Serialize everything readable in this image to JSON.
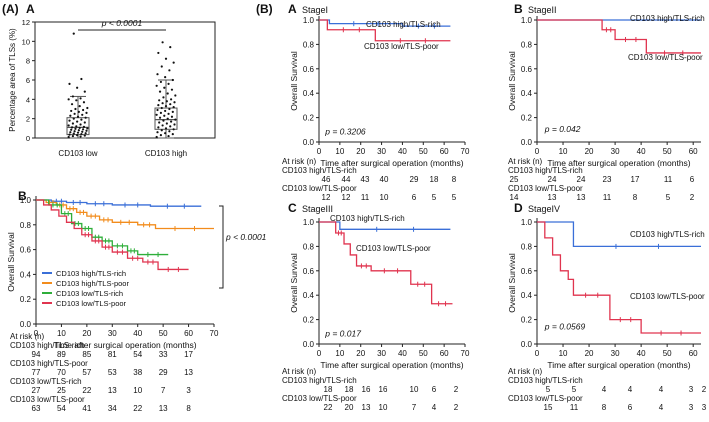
{
  "panel_labels": {
    "main_a": "(A)",
    "sub_a": "A",
    "sub_b_left": "B",
    "main_b": "(B)"
  },
  "colors": {
    "blue": "#3a6fd8",
    "orange": "#f28c1c",
    "green": "#2fae3a",
    "red": "#e0344f",
    "box": "#555555"
  },
  "chart_data": [
    {
      "id": "boxplot",
      "type": "box",
      "ylabel": "Percentage area of TLSs (%)",
      "yticks": [
        0,
        2,
        4,
        6,
        8,
        10,
        12
      ],
      "ylim": [
        0,
        12
      ],
      "categories": [
        "CD103 low",
        "CD103 high"
      ],
      "annotation": "p < 0.0001",
      "groups": [
        {
          "name": "CD103 low",
          "whisker_low": 0.0,
          "q1": 0.35,
          "median": 1.1,
          "q3": 2.1,
          "whisker_high": 4.3,
          "points": [
            0.1,
            0.15,
            0.2,
            0.25,
            0.3,
            0.35,
            0.4,
            0.45,
            0.5,
            0.55,
            0.6,
            0.65,
            0.7,
            0.75,
            0.8,
            0.85,
            0.9,
            0.95,
            1.0,
            1.05,
            1.1,
            1.15,
            1.2,
            1.3,
            1.4,
            1.5,
            1.6,
            1.7,
            1.8,
            1.9,
            2.0,
            2.1,
            2.2,
            2.3,
            2.4,
            2.5,
            2.6,
            2.7,
            2.8,
            2.9,
            3.0,
            3.1,
            3.3,
            3.5,
            3.7,
            3.9,
            4.0,
            4.1,
            4.3,
            4.8,
            5.2,
            5.6,
            6.1,
            10.8
          ]
        },
        {
          "name": "CD103 high",
          "whisker_low": 0.0,
          "q1": 0.9,
          "median": 1.9,
          "q3": 3.1,
          "whisker_high": 6.0,
          "points": [
            0.1,
            0.2,
            0.3,
            0.4,
            0.5,
            0.6,
            0.7,
            0.8,
            0.9,
            1.0,
            1.1,
            1.2,
            1.3,
            1.4,
            1.5,
            1.6,
            1.7,
            1.8,
            1.9,
            2.0,
            2.1,
            2.2,
            2.3,
            2.4,
            2.5,
            2.6,
            2.7,
            2.8,
            2.9,
            3.0,
            3.1,
            3.2,
            3.3,
            3.4,
            3.5,
            3.6,
            3.7,
            3.8,
            3.9,
            4.0,
            4.2,
            4.4,
            4.6,
            4.8,
            5.0,
            5.2,
            5.4,
            5.6,
            5.8,
            6.0,
            6.3,
            6.6,
            7.0,
            7.4,
            7.8,
            8.2,
            8.8,
            9.4,
            9.9
          ]
        }
      ]
    },
    {
      "id": "km_all",
      "type": "line",
      "xlabel": "Time after surgical operation (months)",
      "ylabel": "Overall Survival",
      "xticks": [
        0,
        10,
        20,
        30,
        40,
        50,
        60,
        70
      ],
      "yticks": [
        0.0,
        0.2,
        0.4,
        0.6,
        0.8,
        1.0
      ],
      "xlim": [
        0,
        70
      ],
      "ylim": [
        0,
        1
      ],
      "annotation": "p < 0.0001",
      "legend": [
        "CD103 high/TLS-rich",
        "CD103 high/TLS-poor",
        "CD103 low/TLS-rich",
        "CD103 low/TLS-poor"
      ],
      "series": [
        {
          "name": "CD103 high/TLS-rich",
          "color": "blue",
          "steps": [
            [
              0,
              1.0
            ],
            [
              6,
              0.99
            ],
            [
              12,
              0.98
            ],
            [
              20,
              0.97
            ],
            [
              30,
              0.96
            ],
            [
              45,
              0.95
            ],
            [
              65,
              0.95
            ]
          ]
        },
        {
          "name": "CD103 high/TLS-poor",
          "color": "orange",
          "steps": [
            [
              0,
              1.0
            ],
            [
              4,
              0.98
            ],
            [
              8,
              0.96
            ],
            [
              12,
              0.93
            ],
            [
              16,
              0.9
            ],
            [
              20,
              0.87
            ],
            [
              25,
              0.84
            ],
            [
              30,
              0.82
            ],
            [
              40,
              0.8
            ],
            [
              47,
              0.77
            ],
            [
              70,
              0.77
            ]
          ]
        },
        {
          "name": "CD103 low/TLS-rich",
          "color": "green",
          "steps": [
            [
              0,
              1.0
            ],
            [
              5,
              0.96
            ],
            [
              10,
              0.89
            ],
            [
              14,
              0.81
            ],
            [
              18,
              0.77
            ],
            [
              22,
              0.7
            ],
            [
              26,
              0.67
            ],
            [
              30,
              0.63
            ],
            [
              36,
              0.59
            ],
            [
              40,
              0.56
            ],
            [
              52,
              0.56
            ]
          ]
        },
        {
          "name": "CD103 low/TLS-poor",
          "color": "red",
          "steps": [
            [
              0,
              1.0
            ],
            [
              3,
              0.96
            ],
            [
              6,
              0.92
            ],
            [
              9,
              0.87
            ],
            [
              12,
              0.82
            ],
            [
              15,
              0.77
            ],
            [
              18,
              0.72
            ],
            [
              22,
              0.67
            ],
            [
              26,
              0.62
            ],
            [
              30,
              0.58
            ],
            [
              36,
              0.53
            ],
            [
              42,
              0.5
            ],
            [
              48,
              0.44
            ],
            [
              60,
              0.44
            ]
          ]
        }
      ],
      "risk_table": {
        "title": "At risk (n)",
        "rows": [
          {
            "label": "CD103 high/TLS-rich",
            "values": [
              "94",
              "89",
              "85",
              "81",
              "54",
              "33",
              "17"
            ]
          },
          {
            "label": "CD103 high/TLS-poor",
            "values": [
              "77",
              "70",
              "57",
              "53",
              "38",
              "29",
              "13"
            ]
          },
          {
            "label": "CD103 low/TLS-rich",
            "values": [
              "27",
              "25",
              "22",
              "13",
              "10",
              "7",
              "3"
            ]
          },
          {
            "label": "CD103 low/TLS-poor",
            "values": [
              "63",
              "54",
              "41",
              "34",
              "22",
              "13",
              "8"
            ]
          }
        ]
      }
    },
    {
      "id": "km_stage1",
      "type": "line",
      "label": "A",
      "title": "StageI",
      "xlabel": "Time after surgical operation (months)",
      "ylabel": "Overall Survival",
      "xticks": [
        0,
        10,
        20,
        30,
        40,
        50,
        60,
        70
      ],
      "yticks": [
        0.0,
        0.2,
        0.4,
        0.6,
        0.8,
        1.0
      ],
      "xlim": [
        0,
        70
      ],
      "ylim": [
        0,
        1
      ],
      "annotation": "p = 0.3206",
      "series": [
        {
          "name": "CD103 high/TLS-rich",
          "color": "blue",
          "label": "CD103 high/TLS-rich",
          "steps": [
            [
              0,
              1.0
            ],
            [
              5,
              0.97
            ],
            [
              40,
              0.95
            ],
            [
              63,
              0.95
            ]
          ]
        },
        {
          "name": "CD103 low/TLS-poor",
          "color": "red",
          "label": "CD103 low/TLS-poor",
          "steps": [
            [
              0,
              1.0
            ],
            [
              4,
              0.92
            ],
            [
              27,
              0.83
            ],
            [
              63,
              0.83
            ]
          ]
        }
      ],
      "risk_table": {
        "title": "At risk (n)",
        "rows": [
          {
            "label": "CD103 high/TLS-rich",
            "values": [
              "46",
              "44",
              "43",
              "40",
              "29",
              "18",
              "8"
            ]
          },
          {
            "label": "CD103 low/TLS-poor",
            "values": [
              "12",
              "12",
              "11",
              "10",
              "6",
              "5",
              "5"
            ]
          }
        ]
      }
    },
    {
      "id": "km_stage2",
      "type": "line",
      "label": "B",
      "title": "StageII",
      "xlabel": "Time after surgical operation (months)",
      "ylabel": "Overall Survival",
      "xticks": [
        0,
        10,
        20,
        30,
        40,
        50,
        60
      ],
      "yticks": [
        0.0,
        0.2,
        0.4,
        0.6,
        0.8,
        1.0
      ],
      "xlim": [
        0,
        63
      ],
      "ylim": [
        0,
        1
      ],
      "annotation": "p = 0.042",
      "series": [
        {
          "name": "CD103 high/TLS-rich",
          "color": "blue",
          "label": "CD103 high/TLS-rich",
          "steps": [
            [
              0,
              1.0
            ],
            [
              63,
              1.0
            ]
          ]
        },
        {
          "name": "CD103 low/TLS-poor",
          "color": "red",
          "label": "CD103 low/TLS-poor",
          "steps": [
            [
              0,
              1.0
            ],
            [
              25,
              0.92
            ],
            [
              30,
              0.84
            ],
            [
              42,
              0.73
            ],
            [
              63,
              0.73
            ]
          ]
        }
      ],
      "risk_table": {
        "title": "At risk (n)",
        "rows": [
          {
            "label": "CD103 high/TLS-rich",
            "values": [
              "25",
              "24",
              "24",
              "23",
              "17",
              "11",
              "6"
            ]
          },
          {
            "label": "CD103 low/TLS-poor",
            "values": [
              "14",
              "13",
              "13",
              "11",
              "8",
              "5",
              "2"
            ]
          }
        ]
      }
    },
    {
      "id": "km_stage3",
      "type": "line",
      "label": "C",
      "title": "StageIII",
      "xlabel": "Time after surgical operation (months)",
      "ylabel": "Overall Survival",
      "xticks": [
        0,
        10,
        20,
        30,
        40,
        50,
        60,
        70
      ],
      "yticks": [
        0.0,
        0.2,
        0.4,
        0.6,
        0.8,
        1.0
      ],
      "xlim": [
        0,
        70
      ],
      "ylim": [
        0,
        1
      ],
      "annotation": "p = 0.017",
      "series": [
        {
          "name": "CD103 high/TLS-rich",
          "color": "blue",
          "label": "CD103 high/TLS-rich",
          "steps": [
            [
              0,
              1.0
            ],
            [
              10,
              0.94
            ],
            [
              63,
              0.94
            ]
          ]
        },
        {
          "name": "CD103 low/TLS-poor",
          "color": "red",
          "label": "CD103 low/TLS-poor",
          "steps": [
            [
              0,
              1.0
            ],
            [
              8,
              0.91
            ],
            [
              12,
              0.82
            ],
            [
              15,
              0.73
            ],
            [
              18,
              0.64
            ],
            [
              25,
              0.6
            ],
            [
              44,
              0.49
            ],
            [
              54,
              0.33
            ],
            [
              64,
              0.33
            ]
          ]
        }
      ],
      "risk_table": {
        "title": "At risk (n)",
        "rows": [
          {
            "label": "CD103 high/TLS-rich",
            "values": [
              "18",
              "18",
              "16",
              "16",
              "10",
              "6",
              "2"
            ]
          },
          {
            "label": "CD103 low/TLS-poor",
            "values": [
              "22",
              "20",
              "13",
              "10",
              "7",
              "4",
              "2"
            ]
          }
        ]
      }
    },
    {
      "id": "km_stage4",
      "type": "line",
      "label": "D",
      "title": "StageIV",
      "xlabel": "Time after surgical operation (months)",
      "ylabel": "Overall Survival",
      "xticks": [
        0,
        10,
        20,
        30,
        40,
        50,
        60
      ],
      "yticks": [
        0.0,
        0.2,
        0.4,
        0.6,
        0.8,
        1.0
      ],
      "xlim": [
        0,
        63
      ],
      "ylim": [
        0,
        1
      ],
      "annotation": "p = 0.0569",
      "series": [
        {
          "name": "CD103 high/TLS-rich",
          "color": "blue",
          "label": "CD103 high/TLS-rich",
          "steps": [
            [
              0,
              1.0
            ],
            [
              14,
              0.8
            ],
            [
              63,
              0.8
            ]
          ]
        },
        {
          "name": "CD103 low/TLS-poor",
          "color": "red",
          "label": "CD103 low/TLS-poor",
          "steps": [
            [
              0,
              1.0
            ],
            [
              3,
              0.87
            ],
            [
              6,
              0.73
            ],
            [
              9,
              0.6
            ],
            [
              12,
              0.53
            ],
            [
              14,
              0.4
            ],
            [
              28,
              0.2
            ],
            [
              40,
              0.09
            ],
            [
              63,
              0.09
            ]
          ]
        }
      ],
      "risk_table": {
        "title": "At risk (n)",
        "rows": [
          {
            "label": "CD103 high/TLS-rich",
            "values": [
              "5",
              "5",
              "4",
              "4",
              "4",
              "3",
              "2"
            ]
          },
          {
            "label": "CD103 low/TLS-poor",
            "values": [
              "15",
              "11",
              "8",
              "6",
              "4",
              "3",
              "3"
            ]
          }
        ]
      }
    }
  ]
}
